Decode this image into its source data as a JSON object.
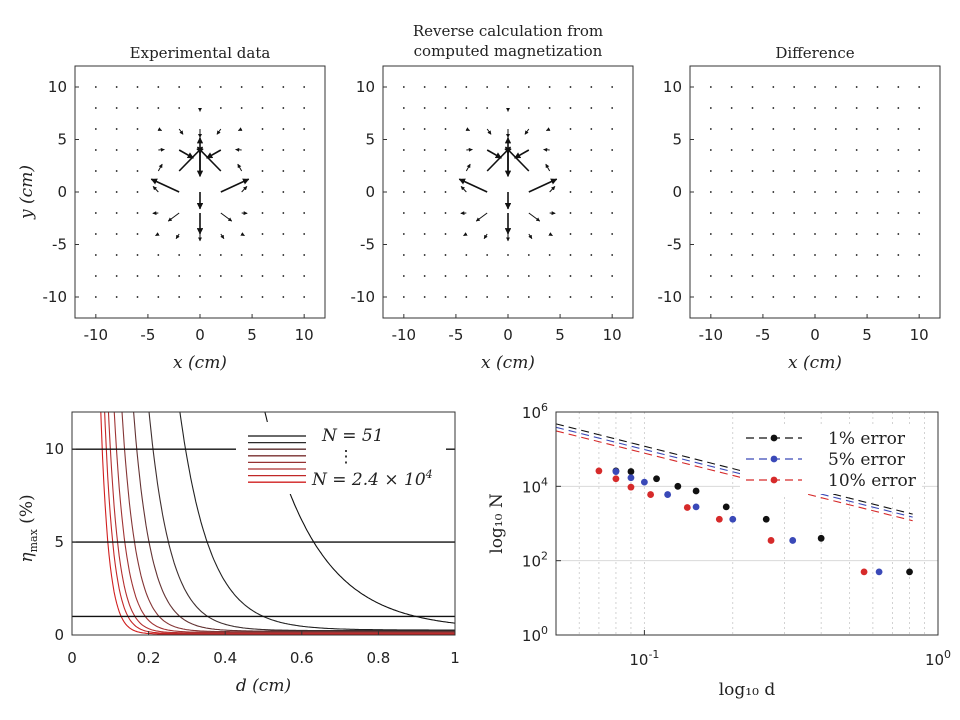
{
  "chart_data": [
    {
      "type": "quiver",
      "title": "Experimental data",
      "xlabel": "x (cm)",
      "ylabel": "y (cm)",
      "xlim": [
        -12,
        12
      ],
      "ylim": [
        -12,
        12
      ],
      "xticks": [
        "-10",
        "-5",
        "0",
        "5",
        "10"
      ],
      "yticks": [
        "10",
        "5",
        "0",
        "-5",
        "-10"
      ],
      "field": "dipole",
      "grid_spacing": 2,
      "scale": 1.0
    },
    {
      "type": "quiver",
      "title_lines": [
        "Reverse calculation from",
        "computed magnetization"
      ],
      "xlabel": "x (cm)",
      "xlim": [
        -12,
        12
      ],
      "ylim": [
        -12,
        12
      ],
      "xticks": [
        "-10",
        "-5",
        "0",
        "5",
        "10"
      ],
      "yticks": [
        "10",
        "5",
        "0",
        "-5",
        "-10"
      ],
      "field": "dipole",
      "grid_spacing": 2,
      "scale": 1.0
    },
    {
      "type": "quiver",
      "title": "Difference",
      "xlabel": "x (cm)",
      "xlim": [
        -12,
        12
      ],
      "ylim": [
        -12,
        12
      ],
      "xticks": [
        "-10",
        "-5",
        "0",
        "5",
        "10"
      ],
      "yticks": [
        "10",
        "5",
        "0",
        "-5",
        "-10"
      ],
      "field": "residual",
      "grid_spacing": 2,
      "scale": 0.08
    },
    {
      "type": "line",
      "xlabel": "d (cm)",
      "ylabel_main": "η",
      "ylabel_sub": "max",
      "ylabel_unit": "(%)",
      "xlim": [
        0,
        1
      ],
      "ylim": [
        0,
        12
      ],
      "xticks": [
        "0",
        "0.2",
        "0.4",
        "0.6",
        "0.8",
        "1"
      ],
      "yticks": [
        "0",
        "5",
        "10"
      ],
      "thresholds": [
        1,
        5,
        10
      ],
      "curves": [
        {
          "d0": 0.075,
          "color": "#d11f1f"
        },
        {
          "d0": 0.085,
          "color": "#c52828"
        },
        {
          "d0": 0.095,
          "color": "#b42f2f"
        },
        {
          "d0": 0.11,
          "color": "#a03434"
        },
        {
          "d0": 0.13,
          "color": "#853636"
        },
        {
          "d0": 0.16,
          "color": "#633333"
        },
        {
          "d0": 0.2,
          "color": "#3e2f2f"
        },
        {
          "d0": 0.28,
          "color": "#222222"
        },
        {
          "d0": 0.5,
          "color": "#111111"
        }
      ],
      "legend": {
        "top": "N = 51",
        "dots": "⋮",
        "bottom_prefix": "N = 2.4 × 10",
        "bottom_exp": "4"
      }
    },
    {
      "type": "scatter",
      "xscale": "log",
      "yscale": "log",
      "xlabel": "log₁₀ d",
      "ylabel": "log₁₀ N",
      "xlim": [
        0.05,
        1
      ],
      "ylim": [
        1,
        1000000
      ],
      "xtick_labels": [
        {
          "value": 0.1,
          "base": "10",
          "exp": "-1"
        },
        {
          "value": 1,
          "base": "10",
          "exp": "0"
        }
      ],
      "ytick_labels": [
        {
          "value": 1,
          "base": "10",
          "exp": "0"
        },
        {
          "value": 100,
          "base": "10",
          "exp": "2"
        },
        {
          "value": 10000,
          "base": "10",
          "exp": "4"
        },
        {
          "value": 1000000,
          "base": "10",
          "exp": "6"
        }
      ],
      "series": [
        {
          "name": "1% error",
          "color": "#111111",
          "x": [
            0.08,
            0.09,
            0.11,
            0.13,
            0.15,
            0.19,
            0.26,
            0.4,
            0.8
          ],
          "y": [
            26000,
            25000,
            16000,
            10000,
            7500,
            2800,
            1300,
            400,
            50
          ],
          "fit_a": 1200,
          "fit_b": -2.0
        },
        {
          "name": "5% error",
          "color": "#3a49b8",
          "x": [
            0.08,
            0.09,
            0.1,
            0.12,
            0.15,
            0.2,
            0.32,
            0.63
          ],
          "y": [
            25000,
            17000,
            13000,
            6000,
            2800,
            1300,
            350,
            50
          ],
          "fit_a": 1000,
          "fit_b": -1.99
        },
        {
          "name": "10% error",
          "color": "#d62a2a",
          "x": [
            0.07,
            0.08,
            0.09,
            0.105,
            0.14,
            0.18,
            0.27,
            0.56
          ],
          "y": [
            26000,
            16000,
            9500,
            6000,
            2700,
            1300,
            350,
            50
          ],
          "fit_a": 800,
          "fit_b": -1.99
        }
      ]
    }
  ]
}
